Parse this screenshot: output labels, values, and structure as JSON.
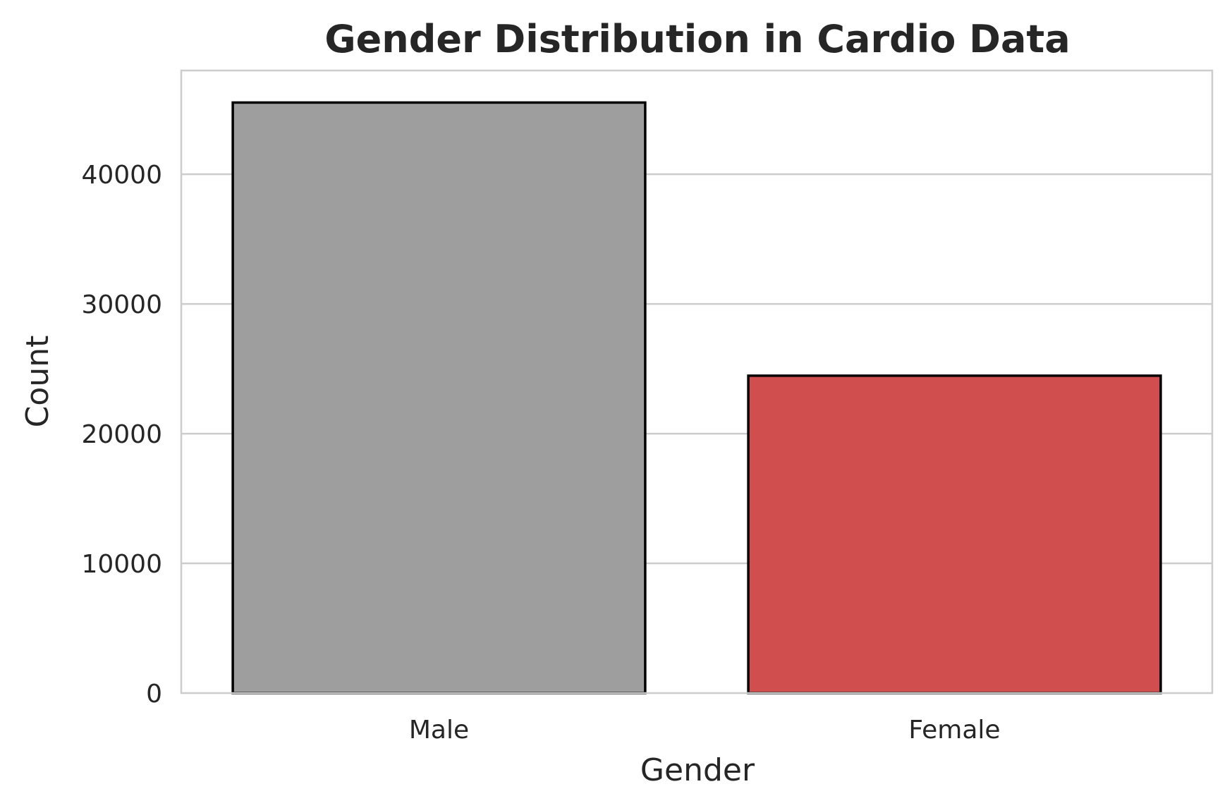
{
  "chart_data": {
    "type": "bar",
    "title": "Gender Distribution in Cardio Data",
    "xlabel": "Gender",
    "ylabel": "Count",
    "categories": [
      "Male",
      "Female"
    ],
    "values": [
      45530,
      24470
    ],
    "colors": [
      "#9e9e9e",
      "#d04e4e"
    ],
    "edge_color": "#000000",
    "ylim": [
      0,
      48000
    ],
    "yticks": [
      0,
      10000,
      20000,
      30000,
      40000
    ],
    "ytick_labels": [
      "0",
      "10000",
      "20000",
      "30000",
      "40000"
    ],
    "grid": "horizontal"
  }
}
